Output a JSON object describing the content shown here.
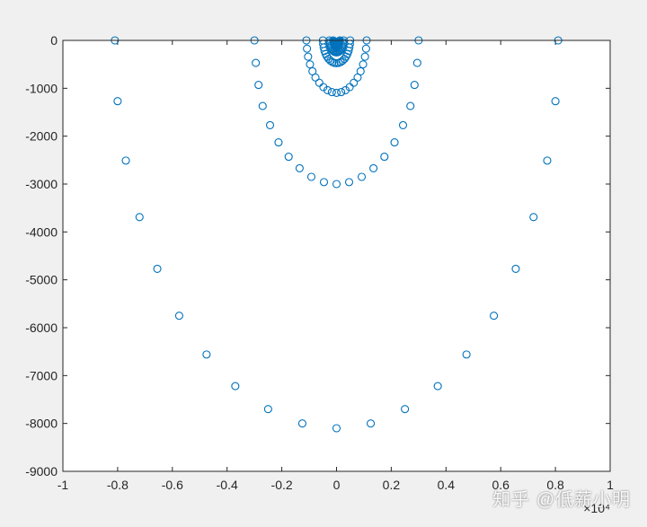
{
  "watermark": "知乎 @低薪小明",
  "chart_data": {
    "type": "scatter",
    "title": "",
    "xlabel": "",
    "ylabel": "",
    "xlim": [
      -1,
      1
    ],
    "ylim": [
      -9000,
      0
    ],
    "x_multiplier_label": "×10⁴",
    "x_ticks": [
      -1,
      -0.8,
      -0.6,
      -0.4,
      -0.2,
      0,
      0.2,
      0.4,
      0.6,
      0.8,
      1
    ],
    "x_tick_labels": [
      "-1",
      "-0.8",
      "-0.6",
      "-0.4",
      "-0.2",
      "0",
      "0.2",
      "0.4",
      "0.6",
      "0.8",
      "1"
    ],
    "y_ticks": [
      0,
      -1000,
      -2000,
      -3000,
      -4000,
      -5000,
      -6000,
      -7000,
      -8000,
      -9000
    ],
    "y_tick_labels": [
      "0",
      "-1000",
      "-2000",
      "-3000",
      "-4000",
      "-5000",
      "-6000",
      "-7000",
      "-8000",
      "-9000"
    ],
    "grid": false,
    "legend": "none",
    "marker": "circle-open",
    "marker_color": "#0072bd",
    "series": [
      {
        "x": [
          -0.81,
          -0.8,
          -0.77,
          -0.72,
          -0.655,
          -0.575,
          -0.475,
          -0.37,
          -0.25,
          -0.125,
          0,
          0.125,
          0.25,
          0.37,
          0.475,
          0.575,
          0.655,
          0.72,
          0.77,
          0.8,
          0.81
        ],
        "y": [
          0,
          -1270,
          -2510,
          -3690,
          -4770,
          -5750,
          -6560,
          -7220,
          -7700,
          -8000,
          -8100,
          -8000,
          -7700,
          -7220,
          -6560,
          -5750,
          -4770,
          -3690,
          -2510,
          -1270,
          0
        ]
      },
      {
        "x": [
          -0.3,
          -0.295,
          -0.285,
          -0.27,
          -0.243,
          -0.212,
          -0.175,
          -0.135,
          -0.092,
          -0.046,
          0,
          0.046,
          0.092,
          0.135,
          0.175,
          0.212,
          0.243,
          0.27,
          0.285,
          0.295,
          0.3
        ],
        "y": [
          0,
          -470,
          -930,
          -1370,
          -1770,
          -2130,
          -2430,
          -2670,
          -2850,
          -2960,
          -3000,
          -2960,
          -2850,
          -2670,
          -2430,
          -2130,
          -1770,
          -1370,
          -930,
          -470,
          0
        ]
      },
      {
        "x": [
          -0.11,
          -0.108,
          -0.104,
          -0.097,
          -0.088,
          -0.077,
          -0.063,
          -0.048,
          -0.033,
          -0.017,
          0,
          0.017,
          0.033,
          0.048,
          0.063,
          0.077,
          0.088,
          0.097,
          0.104,
          0.108,
          0.11
        ],
        "y": [
          0,
          -172,
          -340,
          -500,
          -645,
          -775,
          -885,
          -975,
          -1040,
          -1080,
          -1095,
          -1080,
          -1040,
          -975,
          -885,
          -775,
          -645,
          -500,
          -340,
          -172,
          0
        ]
      },
      {
        "x": [
          -0.05,
          -0.049,
          -0.047,
          -0.044,
          -0.04,
          -0.035,
          -0.029,
          -0.022,
          -0.015,
          -0.008,
          0,
          0.008,
          0.015,
          0.022,
          0.029,
          0.035,
          0.04,
          0.044,
          0.047,
          0.049,
          0.05
        ],
        "y": [
          0,
          -75,
          -148,
          -218,
          -282,
          -338,
          -386,
          -425,
          -453,
          -470,
          -476,
          -470,
          -453,
          -425,
          -386,
          -338,
          -282,
          -218,
          -148,
          -75,
          0
        ]
      },
      {
        "x": [
          -0.026,
          -0.0255,
          -0.0245,
          -0.023,
          -0.021,
          -0.018,
          -0.015,
          -0.0115,
          -0.008,
          -0.004,
          0,
          0.004,
          0.008,
          0.0115,
          0.015,
          0.018,
          0.021,
          0.023,
          0.0245,
          0.0255,
          0.026
        ],
        "y": [
          0,
          -40,
          -78,
          -115,
          -148,
          -178,
          -203,
          -223,
          -238,
          -247,
          -250,
          -247,
          -238,
          -223,
          -203,
          -178,
          -148,
          -115,
          -78,
          -40,
          0
        ]
      },
      {
        "x": [
          -0.012,
          -0.0118,
          -0.0113,
          -0.0106,
          -0.0096,
          -0.0084,
          -0.0069,
          -0.0053,
          -0.0036,
          -0.0018,
          0,
          0.0018,
          0.0036,
          0.0053,
          0.0069,
          0.0084,
          0.0096,
          0.0106,
          0.0113,
          0.0118,
          0.012
        ],
        "y": [
          0,
          -19,
          -37,
          -54,
          -70,
          -84,
          -96,
          -105,
          -112,
          -116,
          -118,
          -116,
          -112,
          -105,
          -96,
          -84,
          -70,
          -54,
          -37,
          -19,
          0
        ]
      }
    ]
  }
}
